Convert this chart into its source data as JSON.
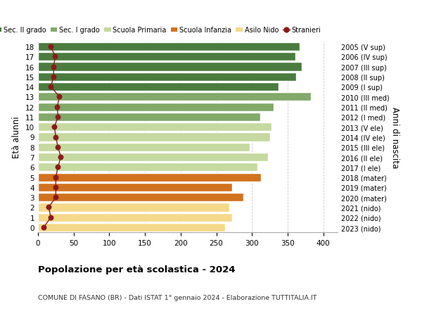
{
  "ages": [
    0,
    1,
    2,
    3,
    4,
    5,
    6,
    7,
    8,
    9,
    10,
    11,
    12,
    13,
    14,
    15,
    16,
    17,
    18
  ],
  "right_labels": [
    "2023 (nido)",
    "2022 (nido)",
    "2021 (nido)",
    "2020 (mater)",
    "2019 (mater)",
    "2018 (mater)",
    "2017 (I ele)",
    "2016 (II ele)",
    "2015 (III ele)",
    "2014 (IV ele)",
    "2013 (V ele)",
    "2012 (I med)",
    "2011 (II med)",
    "2010 (III med)",
    "2009 (I sup)",
    "2008 (II sup)",
    "2007 (III sup)",
    "2006 (IV sup)",
    "2005 (V sup)"
  ],
  "bar_values": [
    262,
    272,
    268,
    288,
    272,
    313,
    308,
    322,
    297,
    325,
    327,
    312,
    330,
    383,
    337,
    362,
    370,
    361,
    367
  ],
  "stranieri": [
    8,
    18,
    15,
    25,
    25,
    25,
    28,
    32,
    28,
    25,
    23,
    28,
    27,
    30,
    18,
    22,
    22,
    24,
    18
  ],
  "bar_colors": {
    "sec2": "#4a7c3f",
    "sec1": "#82a96a",
    "primaria": "#c5d9a0",
    "infanzia": "#d2721e",
    "nido": "#f5d98a"
  },
  "age_school": {
    "sec2": [
      14,
      15,
      16,
      17,
      18
    ],
    "sec1": [
      11,
      12,
      13
    ],
    "primaria": [
      6,
      7,
      8,
      9,
      10
    ],
    "infanzia": [
      3,
      4,
      5
    ],
    "nido": [
      0,
      1,
      2
    ]
  },
  "title": "Popolazione per età scolastica - 2024",
  "subtitle": "COMUNE DI FASANO (BR) - Dati ISTAT 1° gennaio 2024 - Elaborazione TUTTITALIA.IT",
  "ylabel_left": "Età alunni",
  "ylabel_right": "Anni di nascita",
  "xlim": [
    0,
    420
  ],
  "xticks": [
    0,
    50,
    100,
    150,
    200,
    250,
    300,
    350,
    400
  ],
  "legend_labels": [
    "Sec. II grado",
    "Sec. I grado",
    "Scuola Primaria",
    "Scuola Infanzia",
    "Asilo Nido",
    "Stranieri"
  ],
  "stranieri_color": "#8b1a1a",
  "background_color": "#ffffff",
  "grid_color": "#cccccc"
}
